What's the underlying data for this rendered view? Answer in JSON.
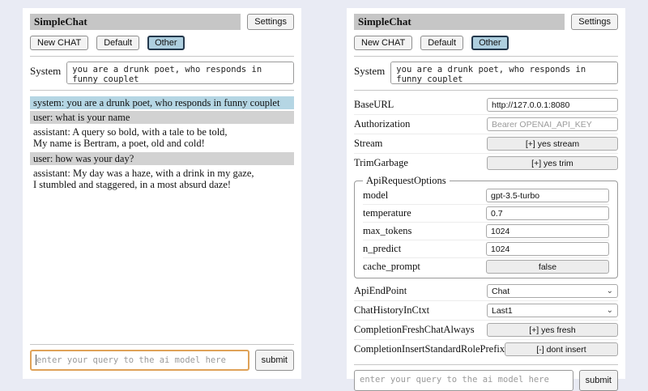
{
  "colors": {
    "page_background": "#e9ebf4",
    "panel_background": "#ffffff",
    "titlebar_background": "#c6c6c6",
    "selected_chat_background": "#aecfdf",
    "system_message_background": "#b5d6e4",
    "user_message_background": "#d2d2d2",
    "focused_query_border": "#dfa258"
  },
  "icons": {
    "chevron_down": "⌄"
  },
  "header": {
    "title": "SimpleChat",
    "settings_button": "Settings"
  },
  "chat_tabs": {
    "new_chat": "New CHAT",
    "default": "Default",
    "other": "Other",
    "selected": "Other"
  },
  "system": {
    "label": "System",
    "value": "you are a drunk poet, who responds in funny couplet"
  },
  "messages": [
    {
      "role": "system",
      "text": "system: you are a drunk poet, who responds in funny couplet"
    },
    {
      "role": "user",
      "text": "user: what is your name"
    },
    {
      "role": "assistant",
      "text": "assistant: A query so bold, with a tale to be told,\nMy name is Bertram, a poet, old and cold!"
    },
    {
      "role": "user",
      "text": "user: how was your day?"
    },
    {
      "role": "assistant",
      "text": "assistant: My day was a haze, with a drink in my gaze,\nI stumbled and staggered, in a most absurd daze!"
    }
  ],
  "settings": {
    "base_url": {
      "label": "BaseURL",
      "value": "http://127.0.0.1:8080"
    },
    "authorization": {
      "label": "Authorization",
      "placeholder": "Bearer OPENAI_API_KEY"
    },
    "stream": {
      "label": "Stream",
      "button": "[+] yes stream"
    },
    "trim_garbage": {
      "label": "TrimGarbage",
      "button": "[+] yes trim"
    },
    "api_request_options": {
      "legend": "ApiRequestOptions",
      "model": {
        "label": "model",
        "value": "gpt-3.5-turbo"
      },
      "temperature": {
        "label": "temperature",
        "value": "0.7"
      },
      "max_tokens": {
        "label": "max_tokens",
        "value": "1024"
      },
      "n_predict": {
        "label": "n_predict",
        "value": "1024"
      },
      "cache_prompt": {
        "label": "cache_prompt",
        "button": "false"
      }
    },
    "api_endpoint": {
      "label": "ApiEndPoint",
      "value": "Chat"
    },
    "chat_history_in_ctxt": {
      "label": "ChatHistoryInCtxt",
      "value": "Last1"
    },
    "completion_fresh_chat_always": {
      "label": "CompletionFreshChatAlways",
      "button": "[+] yes fresh"
    },
    "completion_insert_standard_role_prefix": {
      "label": "CompletionInsertStandardRolePrefix",
      "button": "[-] dont insert"
    }
  },
  "query": {
    "placeholder": "enter your query to the ai model here",
    "submit": "submit"
  }
}
